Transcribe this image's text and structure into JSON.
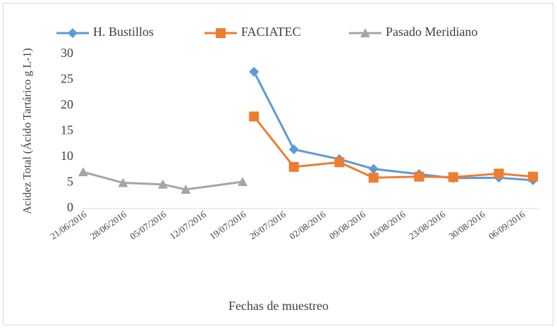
{
  "chart_data": {
    "type": "line",
    "xlabel": "Fechas de muestreo",
    "ylabel": "Acidez Total (Ácido Tartárico g L-1)",
    "legend": "top",
    "xlim": [
      "21/06/2016",
      "09/09/2016"
    ],
    "xticks": [
      "21/06/2016",
      "28/06/2016",
      "05/07/2016",
      "12/07/2016",
      "19/07/2016",
      "26/07/2016",
      "02/08/2016",
      "09/08/2016",
      "16/08/2016",
      "23/08/2016",
      "30/08/2016",
      "06/09/2016"
    ],
    "ylim": [
      0,
      30
    ],
    "yticks": [
      0,
      5,
      10,
      15,
      20,
      25,
      30
    ],
    "series": [
      {
        "name": "H. Bustillos",
        "color": "#5b9bd5",
        "marker": "diamond",
        "x": [
          "21/07/2016",
          "28/07/2016",
          "05/08/2016",
          "11/08/2016",
          "19/08/2016",
          "25/08/2016",
          "02/09/2016",
          "08/09/2016"
        ],
        "values": [
          26.6,
          11.5,
          9.6,
          7.7,
          6.7,
          5.9,
          6.0,
          5.5
        ]
      },
      {
        "name": "FACIATEC",
        "color": "#ed7d31",
        "marker": "square",
        "x": [
          "21/07/2016",
          "28/07/2016",
          "05/08/2016",
          "11/08/2016",
          "19/08/2016",
          "25/08/2016",
          "02/09/2016",
          "08/09/2016"
        ],
        "values": [
          17.9,
          8.1,
          9.0,
          6.0,
          6.2,
          6.1,
          6.8,
          6.2
        ]
      },
      {
        "name": "Pasado Meridiano",
        "color": "#a5a5a5",
        "marker": "triangle",
        "x": [
          "21/06/2016",
          "28/06/2016",
          "05/07/2016",
          "09/07/2016",
          "19/07/2016"
        ],
        "values": [
          7.1,
          5.0,
          4.7,
          3.7,
          5.2
        ]
      }
    ]
  }
}
